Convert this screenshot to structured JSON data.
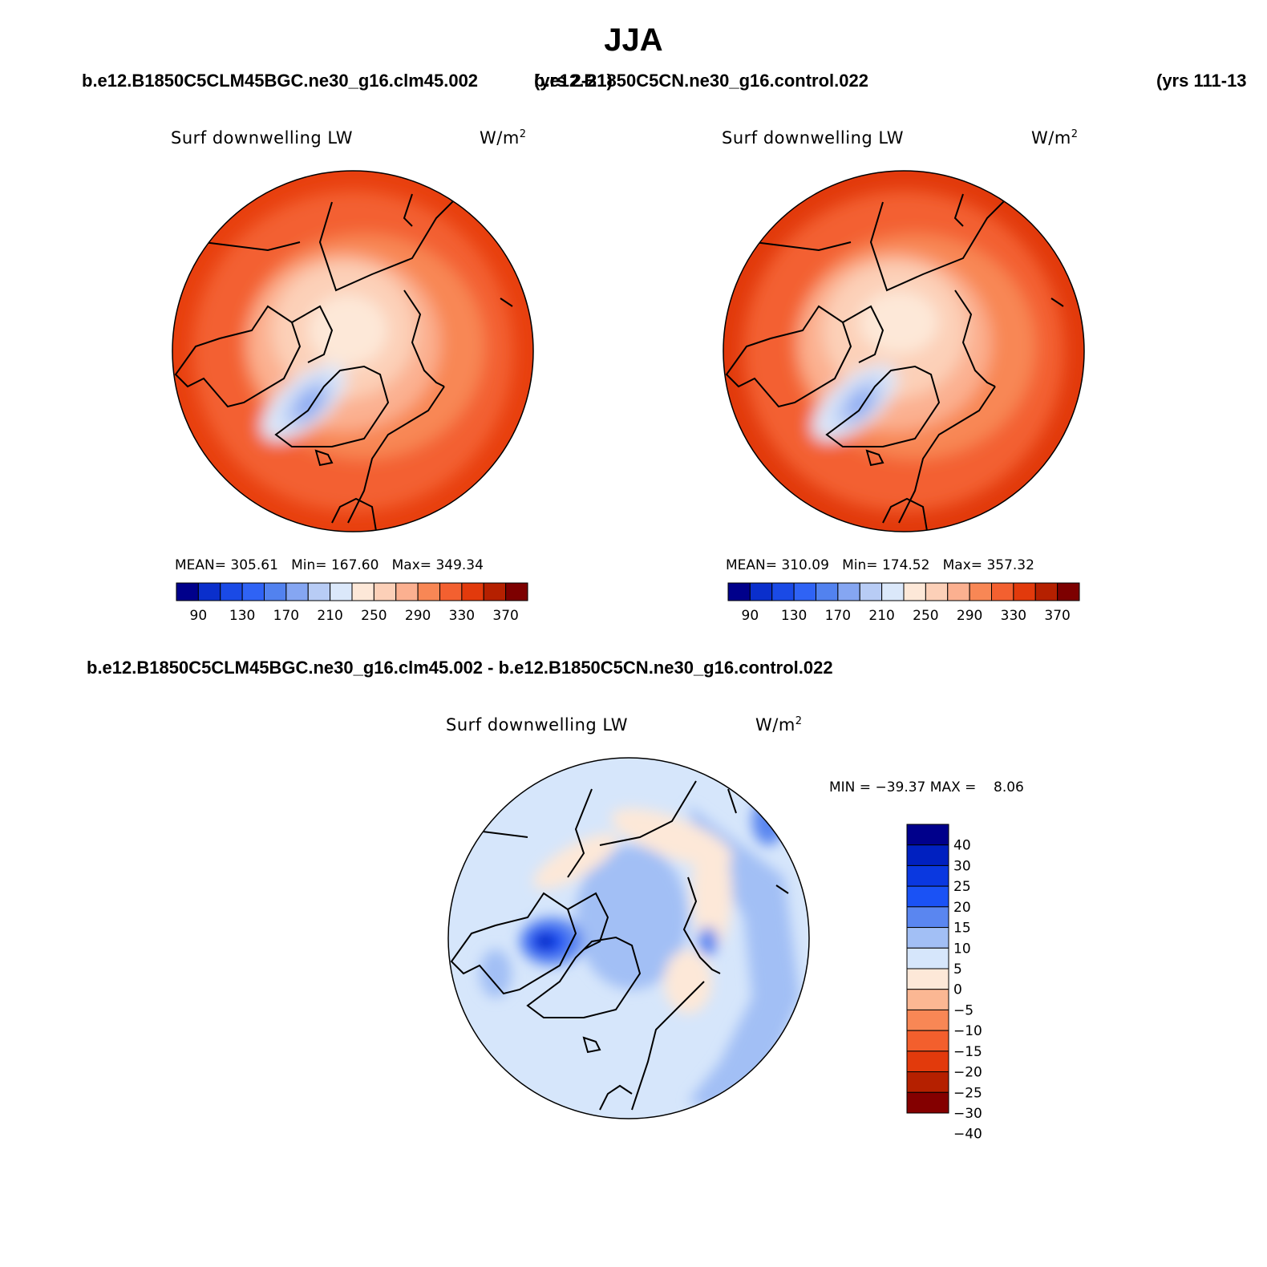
{
  "title": "JJA",
  "case1": {
    "name": "b.e12.B1850C5CLM45BGC.ne30_g16.clm45.002",
    "years": "(yrs 2-21)"
  },
  "case2": {
    "name": "b.e12.B1850C5CN.ne30_g16.control.022",
    "years": "(yrs 111-13"
  },
  "diff_title": "b.e12.B1850C5CLM45BGC.ne30_g16.clm45.002 - b.e12.B1850C5CN.ne30_g16.control.022",
  "colors": {
    "abs_scale": [
      "#00008b",
      "#0a2fcc",
      "#1a4ae6",
      "#2f63f5",
      "#5282ef",
      "#85a6f2",
      "#b8ccf5",
      "#dbe8fa",
      "#fde8d8",
      "#fcd0b8",
      "#fbb090",
      "#f88755",
      "#f36030",
      "#e23a0c",
      "#b52000",
      "#7d0000"
    ],
    "diff_scale": [
      "#00008b",
      "#0020c0",
      "#0a38e0",
      "#1a52f5",
      "#5a86f0",
      "#a2bff5",
      "#d6e6fb",
      "#fde8d8",
      "#fbb793",
      "#f88755",
      "#f35f2d",
      "#e23a0c",
      "#b52000",
      "#840000"
    ]
  },
  "chart_data": [
    {
      "type": "heatmap",
      "panel": "case1",
      "title": "Surf downwelling LW",
      "units_main": "W/m",
      "units_exp": "2",
      "mean_label": "MEAN=",
      "mean": "305.61",
      "min_label": "Min=",
      "min": "167.60",
      "max_label": "Max=",
      "max": "349.34",
      "colorbar_ticks": [
        "90",
        "130",
        "170",
        "210",
        "250",
        "290",
        "330",
        "370"
      ]
    },
    {
      "type": "heatmap",
      "panel": "case2",
      "title": "Surf downwelling LW",
      "units_main": "W/m",
      "units_exp": "2",
      "mean_label": "MEAN=",
      "mean": "310.09",
      "min_label": "Min=",
      "min": "174.52",
      "max_label": "Max=",
      "max": "357.32",
      "colorbar_ticks": [
        "90",
        "130",
        "170",
        "210",
        "250",
        "290",
        "330",
        "370"
      ]
    },
    {
      "type": "heatmap",
      "panel": "difference",
      "title": "Surf downwelling LW",
      "units_main": "W/m",
      "units_exp": "2",
      "min_label": "MIN =",
      "min": "−39.37",
      "max_label": "MAX =",
      "max": "8.06",
      "colorbar_ticks": [
        "40",
        "30",
        "25",
        "20",
        "15",
        "10",
        "5",
        "0",
        "−5",
        "−10",
        "−15",
        "−20",
        "−25",
        "−30",
        "−40"
      ]
    }
  ]
}
